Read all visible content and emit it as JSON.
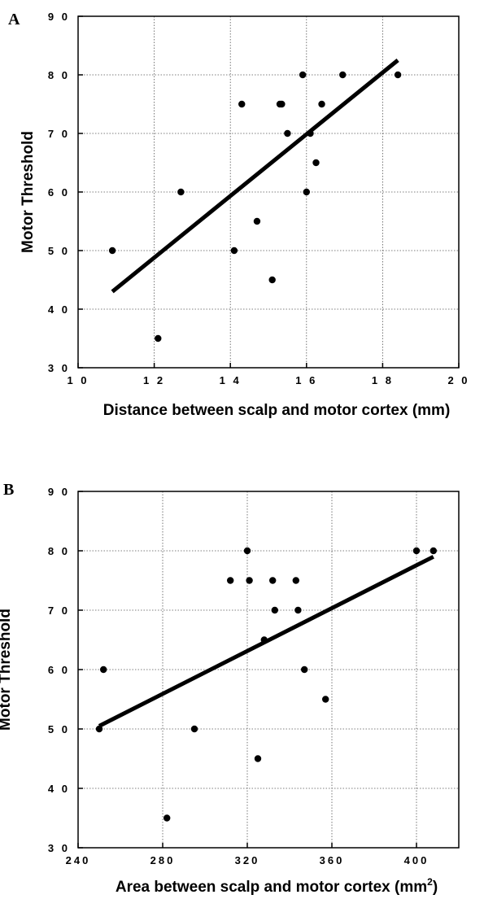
{
  "chart_data": [
    {
      "type": "scatter",
      "panel_label": "A",
      "xlabel": "Distance between scalp and motor cortex (mm)",
      "ylabel": "Motor Threshold",
      "xlim": [
        10,
        20
      ],
      "ylim": [
        30,
        90
      ],
      "x_ticks": [
        10,
        12,
        14,
        16,
        18,
        20
      ],
      "y_ticks": [
        30,
        40,
        50,
        60,
        70,
        80,
        90
      ],
      "x_tick_labels": [
        "1 0",
        "1 2",
        "1 4",
        "1 6",
        "1 8",
        "2 0"
      ],
      "y_tick_labels": [
        "3 0",
        "4 0",
        "5 0",
        "6 0",
        "7 0",
        "8 0",
        "9 0"
      ],
      "grid": true,
      "points": [
        {
          "x": 10.9,
          "y": 50
        },
        {
          "x": 12.1,
          "y": 35
        },
        {
          "x": 12.7,
          "y": 60
        },
        {
          "x": 14.1,
          "y": 50
        },
        {
          "x": 14.3,
          "y": 75
        },
        {
          "x": 14.7,
          "y": 55
        },
        {
          "x": 15.1,
          "y": 45
        },
        {
          "x": 15.3,
          "y": 75
        },
        {
          "x": 15.35,
          "y": 75
        },
        {
          "x": 15.5,
          "y": 70
        },
        {
          "x": 15.9,
          "y": 80
        },
        {
          "x": 16.0,
          "y": 60
        },
        {
          "x": 16.1,
          "y": 70
        },
        {
          "x": 16.25,
          "y": 65
        },
        {
          "x": 16.4,
          "y": 75
        },
        {
          "x": 16.95,
          "y": 80
        },
        {
          "x": 18.4,
          "y": 80
        }
      ],
      "fit_line": {
        "x": [
          10.9,
          18.4
        ],
        "y": [
          43,
          82.5
        ]
      }
    },
    {
      "type": "scatter",
      "panel_label": "B",
      "xlabel": "Area between scalp and motor cortex (mm",
      "xlabel_superscript": "2",
      "xlabel_suffix": ")",
      "ylabel": "Motor Threshold",
      "xlim": [
        240,
        420
      ],
      "ylim": [
        30,
        90
      ],
      "x_ticks": [
        240,
        280,
        320,
        360,
        400
      ],
      "y_ticks": [
        30,
        40,
        50,
        60,
        70,
        80,
        90
      ],
      "x_tick_labels": [
        "240",
        "280",
        "320",
        "360",
        "400"
      ],
      "y_tick_labels": [
        "3 0",
        "4 0",
        "5 0",
        "6 0",
        "7 0",
        "8 0",
        "9 0"
      ],
      "grid": true,
      "points": [
        {
          "x": 250,
          "y": 50
        },
        {
          "x": 252,
          "y": 60
        },
        {
          "x": 282,
          "y": 35
        },
        {
          "x": 295,
          "y": 50
        },
        {
          "x": 312,
          "y": 75
        },
        {
          "x": 320,
          "y": 80
        },
        {
          "x": 321,
          "y": 75
        },
        {
          "x": 325,
          "y": 45
        },
        {
          "x": 328,
          "y": 65
        },
        {
          "x": 332,
          "y": 75
        },
        {
          "x": 333,
          "y": 70
        },
        {
          "x": 343,
          "y": 75
        },
        {
          "x": 344,
          "y": 70
        },
        {
          "x": 347,
          "y": 60
        },
        {
          "x": 357,
          "y": 55
        },
        {
          "x": 400,
          "y": 80
        },
        {
          "x": 408,
          "y": 80
        }
      ],
      "fit_line": {
        "x": [
          250,
          408
        ],
        "y": [
          50.5,
          79
        ]
      }
    }
  ]
}
